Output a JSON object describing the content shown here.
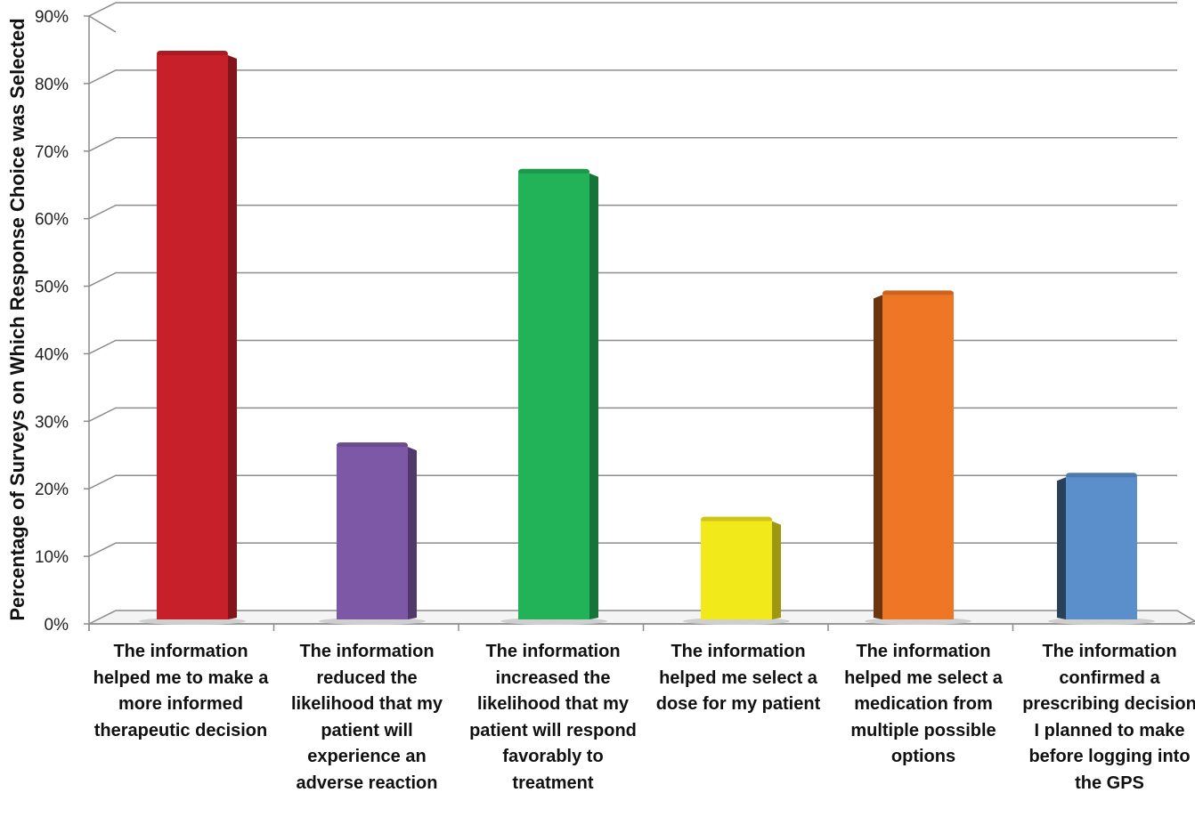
{
  "chart_data": {
    "type": "bar",
    "ylabel": "Percentage of Surveys on Which Response Choice was Selected",
    "xlabel": "",
    "ylim": [
      0,
      90
    ],
    "yticks": [
      "0%",
      "10%",
      "20%",
      "30%",
      "40%",
      "50%",
      "60%",
      "70%",
      "80%",
      "90%"
    ],
    "grid": true,
    "categories": [
      "The information helped me to make a more informed therapeutic decision",
      "The information reduced the likelihood that my patient will experience an adverse reaction",
      "The information increased the likelihood that my patient will respond favorably to treatment",
      "The information helped me select a dose for my patient",
      "The information helped me select a medication from multiple possible options",
      "The information confirmed a prescribing decision I planned to make before logging into the GPS"
    ],
    "values": [
      85,
      27,
      67.5,
      16,
      49.5,
      22.5
    ],
    "colors": [
      "#c8202a",
      "#7d58a6",
      "#22b257",
      "#f2e91a",
      "#ee7624",
      "#5a8fcb"
    ]
  }
}
